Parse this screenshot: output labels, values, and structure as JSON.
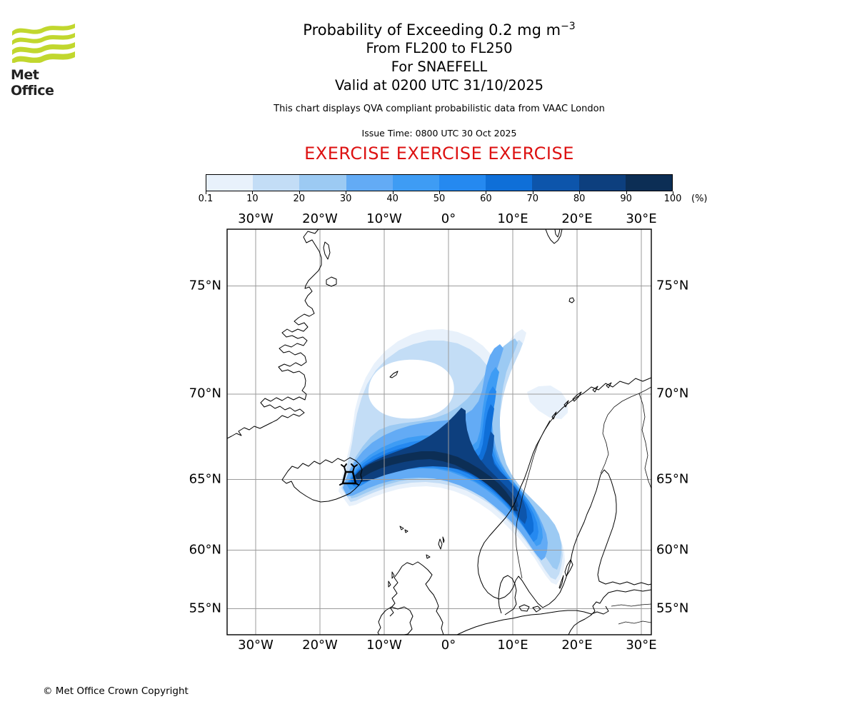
{
  "header": {
    "logo_text": "Met Office",
    "logo_green": "#c1d72e",
    "title_main": "Probability of Exceeding 0.2 mg m",
    "title_sup": "−3",
    "subtitle_levels": "From FL200 to FL250",
    "subtitle_volcano": "For SNAEFELL",
    "subtitle_valid": "Valid at 0200 UTC 31/10/2025",
    "qva_line": "This chart displays QVA compliant probabilistic data from VAAC London",
    "issue_line": "Issue Time: 0800 UTC 30 Oct 2025",
    "exercise_banner": "EXERCISE EXERCISE EXERCISE",
    "exercise_color": "#dd1111"
  },
  "legend": {
    "tick_labels": [
      "0.1",
      "10",
      "20",
      "30",
      "40",
      "50",
      "60",
      "70",
      "80",
      "90",
      "100"
    ],
    "unit_label": "(%)",
    "colors": [
      "#E8F1FB",
      "#C3DDF6",
      "#9CCAF3",
      "#63ABF5",
      "#3E9CF4",
      "#2589F0",
      "#0F6FD8",
      "#0D55AB",
      "#0D3F7E",
      "#0C2E55"
    ]
  },
  "map": {
    "lon_labels": [
      "30°W",
      "20°W",
      "10°W",
      "0°",
      "10°E",
      "20°E",
      "30°E"
    ],
    "lat_labels": [
      "75°N",
      "70°N",
      "65°N",
      "60°N",
      "55°N"
    ]
  },
  "footer": {
    "copyright": "© Met Office Crown Copyright"
  },
  "chart_data": {
    "type": "heatmap",
    "title": "Probability of Exceeding 0.2 mg m−3",
    "flight_levels": "FL200 to FL250",
    "volcano": "SNAEFELL",
    "valid_time": "0200 UTC 31/10/2025",
    "issue_time": "0800 UTC 30 Oct 2025",
    "source": "VAAC London",
    "status": "EXERCISE",
    "units": "%",
    "probability_bins_percent": [
      0.1,
      10,
      20,
      30,
      40,
      50,
      60,
      70,
      80,
      90,
      100
    ],
    "lon_ticks_deg": [
      -30,
      -20,
      -10,
      0,
      10,
      20,
      30
    ],
    "lat_ticks_deg": [
      75,
      70,
      65,
      60,
      55
    ],
    "projection": "mercator",
    "plume_summary": "Ash plume from Snaefell (east Iceland ~15.5W 64.8N): high-probability (80-100%) band arcs ENE across ~66-67N to the Norwegian coast near 11E 64.5N, then bends SSE along Norway to ~60-61N; a broad low-probability (10-40%) cyclonic fan spreads north over the Norwegian Sea to ~72N between 15W and 10E with a clear hole near 8W 69-70N; branch of 40-70% extends north along ~7-9E from the bend up to ~70N."
  }
}
